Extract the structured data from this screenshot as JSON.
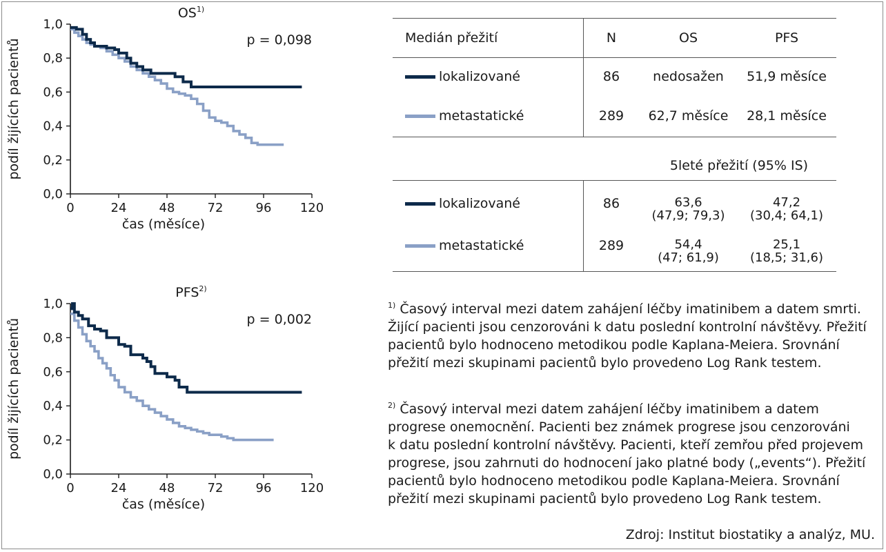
{
  "colors": {
    "localized": "#0d2a4a",
    "metastatic": "#8aa0c6",
    "axis": "#1a1a1a"
  },
  "chart_data": [
    {
      "type": "line",
      "title": "OS",
      "title_sup": "1)",
      "pvalue": "p = 0,098",
      "ylabel": "podíl žijících pacientů",
      "xlabel": "čas (měsíce)",
      "xlim": [
        0,
        120
      ],
      "ylim": [
        0,
        1
      ],
      "xticks": [
        0,
        24,
        48,
        72,
        96,
        120
      ],
      "xtick_labels": [
        "0",
        "24",
        "48",
        "72",
        "96",
        "120"
      ],
      "yticks": [
        0,
        0.2,
        0.4,
        0.6,
        0.8,
        1.0
      ],
      "ytick_labels": [
        "0,0",
        "0,2",
        "0,4",
        "0,6",
        "0,8",
        "1,0"
      ],
      "series": [
        {
          "name": "lokalizované",
          "color": "#0d2a4a",
          "x": [
            0,
            3,
            6,
            8,
            10,
            12,
            18,
            22,
            24,
            28,
            30,
            33,
            36,
            40,
            45,
            52,
            56,
            60,
            115
          ],
          "y": [
            0.98,
            0.97,
            0.94,
            0.91,
            0.89,
            0.87,
            0.86,
            0.85,
            0.83,
            0.8,
            0.77,
            0.75,
            0.73,
            0.71,
            0.71,
            0.69,
            0.66,
            0.63,
            0.63
          ]
        },
        {
          "name": "metastatické",
          "color": "#8aa0c6",
          "x": [
            0,
            2,
            4,
            6,
            8,
            10,
            12,
            15,
            18,
            21,
            24,
            27,
            30,
            33,
            36,
            39,
            42,
            45,
            48,
            51,
            54,
            57,
            60,
            63,
            66,
            69,
            72,
            75,
            78,
            81,
            84,
            87,
            90,
            93,
            96,
            99,
            102,
            106
          ],
          "y": [
            0.97,
            0.95,
            0.93,
            0.91,
            0.89,
            0.88,
            0.87,
            0.86,
            0.84,
            0.82,
            0.8,
            0.78,
            0.75,
            0.73,
            0.71,
            0.69,
            0.67,
            0.65,
            0.62,
            0.6,
            0.59,
            0.58,
            0.56,
            0.53,
            0.49,
            0.45,
            0.43,
            0.42,
            0.4,
            0.37,
            0.35,
            0.33,
            0.3,
            0.29,
            0.29,
            0.29,
            0.29,
            0.29
          ]
        }
      ]
    },
    {
      "type": "line",
      "title": "PFS",
      "title_sup": "2)",
      "pvalue": "p = 0,002",
      "ylabel": "podíl žijících pacientů",
      "xlabel": "čas (měsíce)",
      "xlim": [
        0,
        120
      ],
      "ylim": [
        0,
        1
      ],
      "xticks": [
        0,
        24,
        48,
        72,
        96,
        120
      ],
      "xtick_labels": [
        "0",
        "24",
        "48",
        "72",
        "96",
        "120"
      ],
      "yticks": [
        0,
        0.2,
        0.4,
        0.6,
        0.8,
        1.0
      ],
      "ytick_labels": [
        "0,0",
        "0,2",
        "0,4",
        "0,6",
        "0,8",
        "1,0"
      ],
      "series": [
        {
          "name": "lokalizované",
          "color": "#0d2a4a",
          "x": [
            0,
            1,
            2,
            4,
            6,
            9,
            12,
            15,
            18,
            24,
            27,
            30,
            36,
            38,
            40,
            42,
            48,
            52,
            54,
            58,
            62,
            115
          ],
          "y": [
            0.97,
            1.0,
            0.95,
            0.93,
            0.91,
            0.87,
            0.85,
            0.84,
            0.8,
            0.76,
            0.75,
            0.7,
            0.68,
            0.66,
            0.63,
            0.59,
            0.57,
            0.55,
            0.51,
            0.48,
            0.48,
            0.48
          ]
        },
        {
          "name": "metastatické",
          "color": "#8aa0c6",
          "x": [
            0,
            2,
            4,
            6,
            8,
            10,
            12,
            14,
            16,
            18,
            20,
            22,
            24,
            27,
            30,
            33,
            36,
            39,
            42,
            45,
            48,
            51,
            54,
            57,
            60,
            63,
            66,
            69,
            72,
            75,
            78,
            81,
            84,
            90,
            96,
            101
          ],
          "y": [
            0.94,
            0.9,
            0.86,
            0.82,
            0.78,
            0.75,
            0.72,
            0.68,
            0.65,
            0.62,
            0.58,
            0.55,
            0.51,
            0.48,
            0.45,
            0.43,
            0.4,
            0.38,
            0.36,
            0.34,
            0.32,
            0.3,
            0.28,
            0.27,
            0.26,
            0.25,
            0.24,
            0.23,
            0.23,
            0.22,
            0.21,
            0.2,
            0.2,
            0.2,
            0.2,
            0.2
          ]
        }
      ]
    }
  ],
  "table": {
    "header": {
      "label": "Medián přežití",
      "n": "N",
      "os": "OS",
      "pfs": "PFS"
    },
    "median_rows": [
      {
        "label": "lokalizované",
        "n": "86",
        "os": "nedosažen",
        "pfs": "51,9 měsíce",
        "color": "#0d2a4a"
      },
      {
        "label": "metastatické",
        "n": "289",
        "os": "62,7 měsíce",
        "pfs": "28,1 měsíce",
        "color": "#8aa0c6"
      }
    ],
    "five_year_header": "5leté přežití (95% IS)",
    "five_year_rows": [
      {
        "label": "lokalizované",
        "n": "86",
        "os": "63,6",
        "os_ci": "(47,9; 79,3)",
        "pfs": "47,2",
        "pfs_ci": "(30,4; 64,1)",
        "color": "#0d2a4a"
      },
      {
        "label": "metastatické",
        "n": "289",
        "os": "54,4",
        "os_ci": "(47; 61,9)",
        "pfs": "25,1",
        "pfs_ci": "(18,5; 31,6)",
        "color": "#8aa0c6"
      }
    ]
  },
  "footnotes": [
    {
      "mark": "1)",
      "lines": [
        "Časový interval mezi datem zahájení léčby imatinibem a datem smrti.",
        "Žijící pacienti jsou cenzorováni k datu poslední kontrolní návštěvy. Přežití",
        "pacientů bylo hodnoceno metodikou podle Kaplana-Meiera. Srovnání",
        "přežití mezi skupinami pacientů bylo provedeno Log Rank testem."
      ]
    },
    {
      "mark": "2)",
      "lines": [
        "Časový interval mezi datem zahájení léčby imatinibem a datem",
        "progrese onemocnění. Pacienti bez známek progrese jsou cenzorováni",
        "k datu poslední kontrolní návštěvy. Pacienti, kteří zemřou před projevem",
        "progrese, jsou zahrnuti do hodnocení jako platné body („events“). Přežití",
        "pacientů bylo hodnoceno metodikou podle Kaplana-Meiera. Srovnání",
        "přežití mezi skupinami pacientů bylo provedeno Log Rank testem."
      ]
    }
  ],
  "source": "Zdroj: Institut biostatiky a analýz, MU."
}
